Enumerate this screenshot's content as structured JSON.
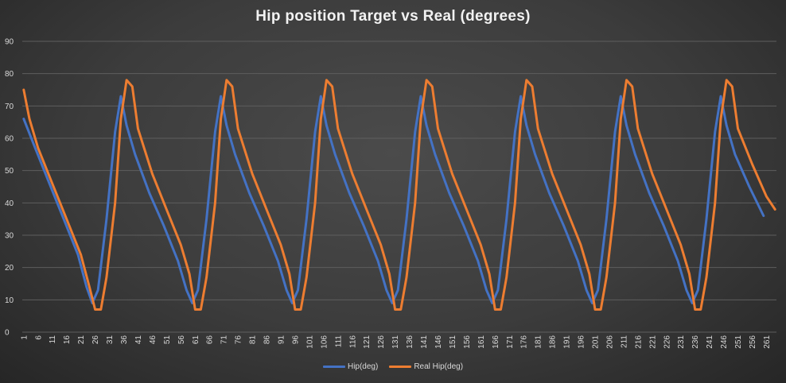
{
  "chart_data": {
    "type": "line",
    "title": "Hip position Target vs Real (degrees)",
    "xlabel": "",
    "ylabel": "",
    "ylim": [
      0,
      90
    ],
    "y_ticks": [
      0,
      10,
      20,
      30,
      40,
      50,
      60,
      70,
      80,
      90
    ],
    "x_range": [
      1,
      264
    ],
    "x_ticks": [
      1,
      6,
      11,
      16,
      21,
      26,
      31,
      36,
      41,
      46,
      51,
      56,
      61,
      66,
      71,
      76,
      81,
      86,
      91,
      96,
      101,
      106,
      111,
      116,
      121,
      126,
      131,
      136,
      141,
      146,
      151,
      156,
      161,
      166,
      171,
      176,
      181,
      186,
      191,
      196,
      201,
      206,
      211,
      216,
      221,
      226,
      231,
      236,
      241,
      246,
      251,
      256,
      261
    ],
    "grid": true,
    "legend_position": "bottom",
    "series": [
      {
        "name": "Hip(deg)",
        "color": "#4472c4",
        "points": [
          [
            1,
            66
          ],
          [
            5,
            57
          ],
          [
            10,
            46
          ],
          [
            15,
            35
          ],
          [
            20,
            24
          ],
          [
            23,
            14
          ],
          [
            25,
            9
          ],
          [
            27,
            13
          ],
          [
            30,
            35
          ],
          [
            33,
            62
          ],
          [
            35,
            73
          ],
          [
            37,
            64
          ],
          [
            40,
            55
          ],
          [
            45,
            43
          ],
          [
            50,
            33
          ],
          [
            55,
            22
          ],
          [
            58,
            13
          ],
          [
            60,
            9
          ],
          [
            62,
            13
          ],
          [
            65,
            35
          ],
          [
            68,
            62
          ],
          [
            70,
            73
          ],
          [
            72,
            64
          ],
          [
            75,
            55
          ],
          [
            80,
            43
          ],
          [
            85,
            33
          ],
          [
            90,
            22
          ],
          [
            93,
            13
          ],
          [
            95,
            9
          ],
          [
            97,
            13
          ],
          [
            100,
            35
          ],
          [
            103,
            62
          ],
          [
            105,
            73
          ],
          [
            107,
            64
          ],
          [
            110,
            55
          ],
          [
            115,
            43
          ],
          [
            120,
            33
          ],
          [
            125,
            22
          ],
          [
            128,
            13
          ],
          [
            130,
            9
          ],
          [
            132,
            13
          ],
          [
            135,
            35
          ],
          [
            138,
            62
          ],
          [
            140,
            73
          ],
          [
            142,
            64
          ],
          [
            145,
            55
          ],
          [
            150,
            43
          ],
          [
            155,
            33
          ],
          [
            160,
            22
          ],
          [
            163,
            13
          ],
          [
            165,
            9
          ],
          [
            167,
            13
          ],
          [
            170,
            35
          ],
          [
            173,
            62
          ],
          [
            175,
            73
          ],
          [
            177,
            64
          ],
          [
            180,
            55
          ],
          [
            185,
            43
          ],
          [
            190,
            33
          ],
          [
            195,
            22
          ],
          [
            198,
            13
          ],
          [
            200,
            9
          ],
          [
            202,
            13
          ],
          [
            205,
            35
          ],
          [
            208,
            62
          ],
          [
            210,
            73
          ],
          [
            212,
            64
          ],
          [
            215,
            55
          ],
          [
            220,
            43
          ],
          [
            225,
            33
          ],
          [
            230,
            22
          ],
          [
            233,
            13
          ],
          [
            235,
            9
          ],
          [
            237,
            13
          ],
          [
            240,
            35
          ],
          [
            243,
            62
          ],
          [
            245,
            73
          ],
          [
            247,
            64
          ],
          [
            250,
            55
          ],
          [
            255,
            45
          ],
          [
            260,
            36
          ]
        ]
      },
      {
        "name": "Real Hip(deg)",
        "color": "#ed7d31",
        "points": [
          [
            1,
            75
          ],
          [
            3,
            66
          ],
          [
            6,
            57
          ],
          [
            11,
            46
          ],
          [
            16,
            35
          ],
          [
            21,
            24
          ],
          [
            24,
            14
          ],
          [
            26,
            7
          ],
          [
            28,
            7
          ],
          [
            30,
            17
          ],
          [
            33,
            40
          ],
          [
            35,
            66
          ],
          [
            37,
            78
          ],
          [
            39,
            76
          ],
          [
            41,
            63
          ],
          [
            46,
            49
          ],
          [
            51,
            38
          ],
          [
            56,
            27
          ],
          [
            59,
            18
          ],
          [
            61,
            7
          ],
          [
            63,
            7
          ],
          [
            65,
            17
          ],
          [
            68,
            40
          ],
          [
            70,
            66
          ],
          [
            72,
            78
          ],
          [
            74,
            76
          ],
          [
            76,
            63
          ],
          [
            81,
            49
          ],
          [
            86,
            38
          ],
          [
            91,
            27
          ],
          [
            94,
            18
          ],
          [
            96,
            7
          ],
          [
            98,
            7
          ],
          [
            100,
            17
          ],
          [
            103,
            40
          ],
          [
            105,
            66
          ],
          [
            107,
            78
          ],
          [
            109,
            76
          ],
          [
            111,
            63
          ],
          [
            116,
            49
          ],
          [
            121,
            38
          ],
          [
            126,
            27
          ],
          [
            129,
            18
          ],
          [
            131,
            7
          ],
          [
            133,
            7
          ],
          [
            135,
            17
          ],
          [
            138,
            40
          ],
          [
            140,
            66
          ],
          [
            142,
            78
          ],
          [
            144,
            76
          ],
          [
            146,
            63
          ],
          [
            151,
            49
          ],
          [
            156,
            38
          ],
          [
            161,
            27
          ],
          [
            164,
            18
          ],
          [
            166,
            7
          ],
          [
            168,
            7
          ],
          [
            170,
            17
          ],
          [
            173,
            40
          ],
          [
            175,
            66
          ],
          [
            177,
            78
          ],
          [
            179,
            76
          ],
          [
            181,
            63
          ],
          [
            186,
            49
          ],
          [
            191,
            38
          ],
          [
            196,
            27
          ],
          [
            199,
            18
          ],
          [
            201,
            7
          ],
          [
            203,
            7
          ],
          [
            205,
            17
          ],
          [
            208,
            40
          ],
          [
            210,
            66
          ],
          [
            212,
            78
          ],
          [
            214,
            76
          ],
          [
            216,
            63
          ],
          [
            221,
            49
          ],
          [
            226,
            38
          ],
          [
            231,
            27
          ],
          [
            234,
            18
          ],
          [
            236,
            7
          ],
          [
            238,
            7
          ],
          [
            240,
            17
          ],
          [
            243,
            40
          ],
          [
            245,
            66
          ],
          [
            247,
            78
          ],
          [
            249,
            76
          ],
          [
            251,
            63
          ],
          [
            256,
            52
          ],
          [
            261,
            42
          ],
          [
            264,
            38
          ]
        ]
      }
    ]
  }
}
